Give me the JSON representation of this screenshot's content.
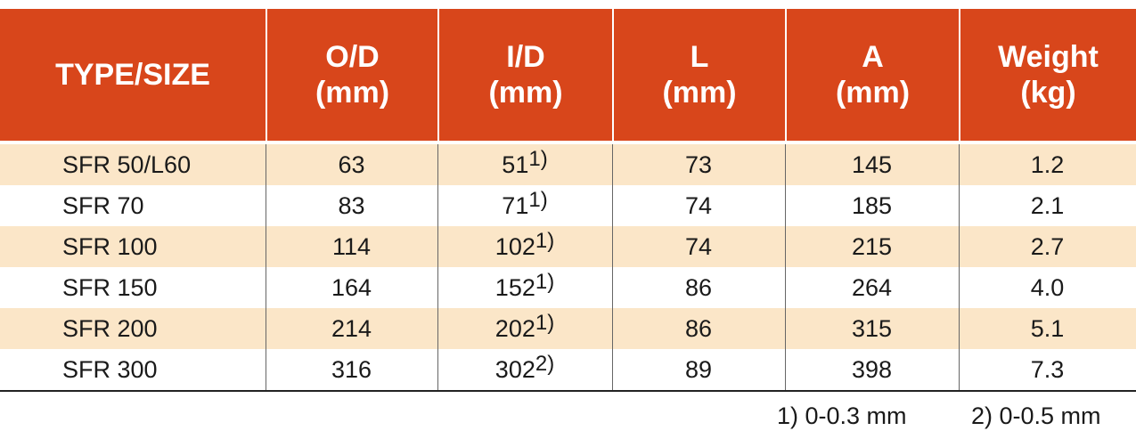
{
  "table": {
    "headers": [
      [
        "TYPE/SIZE"
      ],
      [
        "O/D",
        "(mm)"
      ],
      [
        "I/D",
        "(mm)"
      ],
      [
        "L",
        "(mm)"
      ],
      [
        "A",
        "(mm)"
      ],
      [
        "Weight",
        "(kg)"
      ]
    ],
    "rows": [
      [
        "SFR 50/L60",
        "63",
        "51",
        "73",
        "145",
        "1.2"
      ],
      [
        "SFR 70",
        "83",
        "71",
        "74",
        "185",
        "2.1"
      ],
      [
        "SFR 100",
        "114",
        "102",
        "74",
        "215",
        "2.7"
      ],
      [
        "SFR 150",
        "164",
        "152",
        "86",
        "264",
        "4.0"
      ],
      [
        "SFR 200",
        "214",
        "202",
        "86",
        "315",
        "5.1"
      ],
      [
        "SFR 300",
        "316",
        "302",
        "89",
        "398",
        "7.3"
      ]
    ],
    "id_notes": [
      "1)",
      "1)",
      "1)",
      "1)",
      "1)",
      "2)"
    ],
    "footnotes": [
      "1) 0-0.3 mm",
      "2) 0-0.5 mm"
    ]
  }
}
